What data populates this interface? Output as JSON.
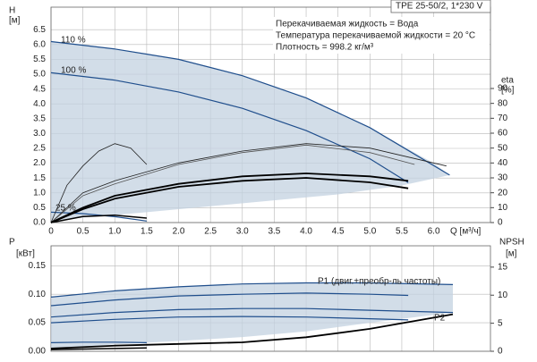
{
  "chart_data": [
    {
      "type": "line",
      "grid": true,
      "x_label": "Q [м³/ч]",
      "y_label": "H",
      "y_unit": "[м]",
      "y2_label": "eta",
      "y2_unit": "[%]",
      "info_title": "TPE 25-50/2, 1*230 V",
      "info": [
        "Перекачиваемая жидкость = Вода",
        "Температура перекачиваемой жидкости = 20 °C",
        "Плотность = 998.2 кг/м³"
      ],
      "annotations": [
        "110 %",
        "100 %",
        "25 %"
      ],
      "xlim": [
        0,
        6.89
      ],
      "ylim": [
        0,
        7.26
      ],
      "y2lim": [
        0,
        144.6
      ],
      "xticks": [
        0,
        0.5,
        {
          "value": 1,
          "label": "1.0"
        },
        1.5,
        {
          "value": 2,
          "label": "2.0"
        },
        2.5,
        {
          "value": 3,
          "label": "3.0"
        },
        3.5,
        {
          "value": 4,
          "label": "4.0"
        },
        4.5,
        {
          "value": 5,
          "label": "5.0"
        },
        5.5,
        {
          "value": 6,
          "label": "6.0"
        }
      ],
      "yticks": [
        {
          "value": 0,
          "label": "0.0"
        },
        0.5,
        {
          "value": 1,
          "label": "1.0"
        },
        1.5,
        {
          "value": 2,
          "label": "2.0"
        },
        2.5,
        {
          "value": 3,
          "label": "3.0"
        },
        3.5,
        {
          "value": 4,
          "label": "4.0"
        },
        4.5,
        {
          "value": 5,
          "label": "5.0"
        },
        5.5,
        {
          "value": 6,
          "label": "6.0"
        },
        6.5
      ],
      "y2ticks": [
        0,
        10,
        20,
        30,
        40,
        50,
        60,
        70,
        80,
        90
      ],
      "series": [
        {
          "color": "#c3d1e0",
          "fill": true,
          "x": [
            0,
            0.5,
            1,
            1.5,
            2,
            2.5,
            3,
            3.5,
            4,
            4.5,
            5,
            5.5,
            6,
            6.25,
            5.5,
            4.5,
            3.5,
            2.5,
            1.5,
            0.8,
            0.4,
            0.2,
            0
          ],
          "values": [
            6.1,
            6.0,
            5.85,
            5.7,
            5.5,
            5.25,
            4.95,
            4.6,
            4.2,
            3.7,
            3.2,
            2.6,
            2.0,
            1.6,
            1.25,
            0.95,
            0.75,
            0.55,
            0.35,
            0.22,
            0.15,
            0.1,
            0
          ]
        },
        {
          "color": "#1f4e8c",
          "width": 1.2,
          "x": [
            0,
            1,
            2,
            3,
            4,
            5,
            6.25
          ],
          "values": [
            6.1,
            5.85,
            5.5,
            4.95,
            4.2,
            3.2,
            1.6
          ]
        },
        {
          "color": "#1f4e8c",
          "width": 1.2,
          "x": [
            0,
            1,
            2,
            3,
            4,
            5,
            5.6
          ],
          "values": [
            5.05,
            4.8,
            4.4,
            3.85,
            3.1,
            2.15,
            1.35
          ]
        },
        {
          "color": "#1f4e8c",
          "width": 1.2,
          "x": [
            0,
            0.5,
            1,
            1.5
          ],
          "values": [
            0.35,
            0.3,
            0.2,
            0.05
          ]
        },
        {
          "color": "#222",
          "width": 0.8,
          "axis": "y2",
          "x": [
            0,
            0.5,
            1,
            2,
            3,
            4,
            5,
            6.2
          ],
          "values": [
            0,
            20,
            28,
            40,
            48,
            53,
            50,
            38
          ]
        },
        {
          "color": "#555",
          "width": 0.8,
          "axis": "y2",
          "x": [
            0,
            0.5,
            1,
            2,
            3,
            4,
            5,
            5.7
          ],
          "values": [
            0,
            18,
            26,
            39,
            47,
            52,
            47,
            39
          ]
        },
        {
          "color": "#222",
          "width": 0.8,
          "axis": "y2",
          "x": [
            0,
            0.25,
            0.5,
            0.75,
            1,
            1.25,
            1.5
          ],
          "values": [
            0,
            25,
            38,
            48,
            53,
            50,
            39
          ]
        },
        {
          "color": "#000",
          "width": 1.8,
          "axis": "y2",
          "x": [
            0,
            0.5,
            1,
            2,
            3,
            4,
            5,
            5.6
          ],
          "values": [
            0,
            10,
            18,
            26,
            31,
            33,
            31,
            28
          ]
        },
        {
          "color": "#000",
          "width": 1.8,
          "axis": "y2",
          "x": [
            0,
            0.5,
            1,
            2,
            3,
            4,
            5,
            5.6
          ],
          "values": [
            0,
            9,
            16,
            24,
            28,
            30,
            27,
            23
          ]
        },
        {
          "color": "#000",
          "width": 1.5,
          "axis": "y2",
          "x": [
            0,
            0.5,
            1,
            1.5
          ],
          "values": [
            0,
            4,
            5,
            3
          ]
        }
      ]
    },
    {
      "type": "line",
      "grid": true,
      "y_label": "P",
      "y_unit": "[кВт]",
      "y2_label": "NPSH",
      "y2_unit": "[м]",
      "annotations": [
        "P1 (двиг.+преобр-ль частоты)",
        "P2"
      ],
      "xlim": [
        0,
        6.89
      ],
      "ylim": [
        0,
        0.185
      ],
      "y2lim": [
        0,
        18.8
      ],
      "yticks": [
        {
          "value": 0,
          "label": "0.00"
        },
        0.05,
        {
          "value": 0.1,
          "label": "0.10"
        },
        0.15
      ],
      "y2ticks": [
        0,
        5,
        10,
        15
      ],
      "series": [
        {
          "color": "#c3d1e0",
          "fill": true,
          "x": [
            0,
            1,
            2,
            3,
            4,
            5,
            6.3,
            6.3,
            5,
            4,
            3,
            2,
            1,
            0.3,
            0
          ],
          "values": [
            0.095,
            0.106,
            0.113,
            0.118,
            0.12,
            0.12,
            0.117,
            0.068,
            0.05,
            0.035,
            0.025,
            0.018,
            0.012,
            0.006,
            0.004
          ]
        },
        {
          "color": "#1f4e8c",
          "width": 1.2,
          "x": [
            0,
            1,
            2,
            3,
            4,
            5,
            6.3
          ],
          "values": [
            0.095,
            0.106,
            0.113,
            0.118,
            0.12,
            0.12,
            0.117
          ]
        },
        {
          "color": "#1f4e8c",
          "width": 1.2,
          "x": [
            0,
            1,
            2,
            3,
            4,
            5,
            5.6
          ],
          "values": [
            0.08,
            0.09,
            0.097,
            0.1,
            0.102,
            0.1,
            0.098
          ]
        },
        {
          "color": "#1f4e8c",
          "width": 1.2,
          "x": [
            0,
            1,
            2,
            3,
            4,
            5,
            6.3
          ],
          "values": [
            0.06,
            0.068,
            0.073,
            0.075,
            0.075,
            0.072,
            0.068
          ]
        },
        {
          "color": "#1f4e8c",
          "width": 1.2,
          "x": [
            0,
            1,
            2,
            3,
            4,
            5,
            5.6
          ],
          "values": [
            0.05,
            0.056,
            0.06,
            0.061,
            0.06,
            0.057,
            0.055
          ]
        },
        {
          "color": "#1f4e8c",
          "width": 1.2,
          "x": [
            0,
            0.5,
            1,
            1.5
          ],
          "values": [
            0.015,
            0.016,
            0.016,
            0.015
          ]
        },
        {
          "color": "#000",
          "width": 1.8,
          "axis": "y2",
          "x": [
            0,
            1,
            2,
            3,
            4,
            5,
            6.3
          ],
          "values": [
            0.5,
            1,
            1.3,
            1.6,
            2.5,
            4,
            6.6
          ]
        },
        {
          "color": "#000",
          "width": 1.5,
          "axis": "y2",
          "x": [
            0,
            0.5,
            1,
            1.5
          ],
          "values": [
            0.3,
            0.4,
            0.5,
            0.6
          ]
        }
      ]
    }
  ]
}
